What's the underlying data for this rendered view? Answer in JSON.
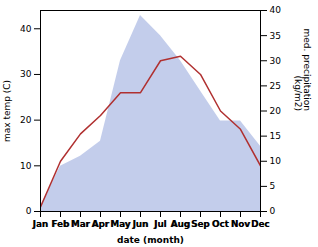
{
  "chart_data": {
    "type": "line",
    "xlabel": "date (month)",
    "ylabel": "max temp (C)",
    "y2label": "med. precipitation\n(kg/m2)",
    "categories": [
      "Jan",
      "Feb",
      "Mar",
      "Apr",
      "May",
      "Jun",
      "Jul",
      "Aug",
      "Sep",
      "Oct",
      "Nov",
      "Dec"
    ],
    "series": [
      {
        "type": "area",
        "axis": "y2",
        "color": "#b8c4e8",
        "values": [
          1,
          9,
          11,
          14,
          30,
          39,
          35,
          30,
          24,
          18,
          18,
          13
        ]
      },
      {
        "type": "line",
        "color": "#b03030",
        "values": [
          1,
          11,
          17,
          21,
          26,
          26,
          33,
          34,
          30,
          22,
          18,
          10
        ]
      }
    ],
    "ylim": [
      0,
      44
    ],
    "yticks": [
      0,
      10,
      20,
      30,
      40
    ],
    "y2lim": [
      0,
      40
    ],
    "y2ticks": [
      0,
      5,
      10,
      15,
      20,
      25,
      30,
      35,
      40
    ]
  }
}
